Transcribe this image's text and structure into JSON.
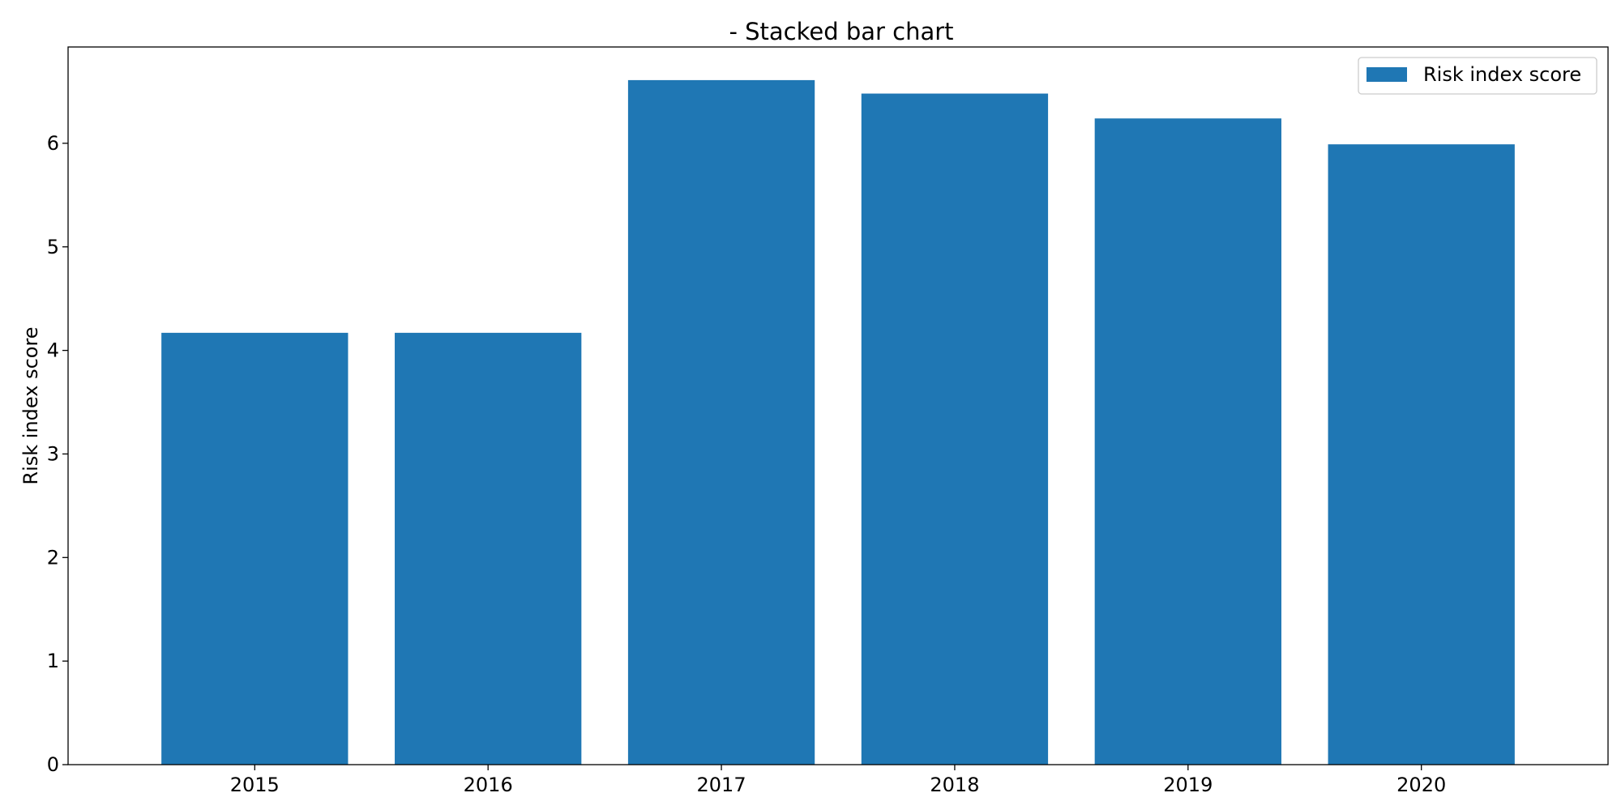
{
  "chart_data": {
    "type": "bar",
    "title": "- Stacked bar chart",
    "xlabel": "",
    "ylabel": "Risk index score",
    "categories": [
      "2015",
      "2016",
      "2017",
      "2018",
      "2019",
      "2020"
    ],
    "series": [
      {
        "name": "Risk index score",
        "color": "#1f77b4",
        "values": [
          4.17,
          4.17,
          6.61,
          6.48,
          6.24,
          5.99
        ]
      }
    ],
    "ylim": [
      0,
      6.93
    ],
    "yticks": [
      0,
      1,
      2,
      3,
      4,
      5,
      6
    ],
    "grid": false,
    "legend_position": "top-right"
  }
}
